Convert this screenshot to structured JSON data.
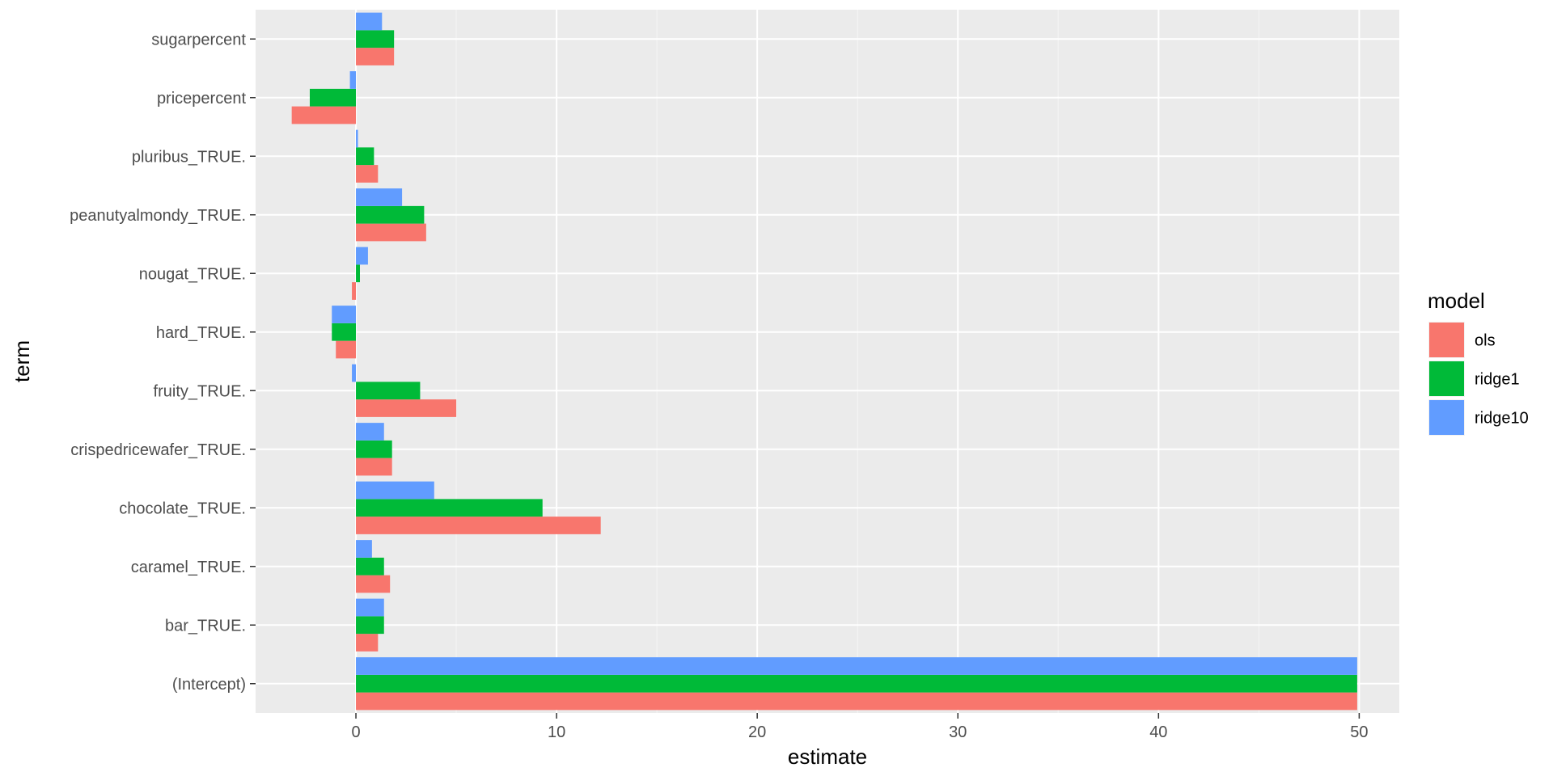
{
  "chart_data": {
    "type": "bar",
    "orientation": "horizontal",
    "xlabel": "estimate",
    "ylabel": "term",
    "xlim": [
      -5,
      52
    ],
    "x_ticks": [
      0,
      10,
      20,
      30,
      40,
      50
    ],
    "categories": [
      "(Intercept)",
      "bar_TRUE.",
      "caramel_TRUE.",
      "chocolate_TRUE.",
      "crispedricewafer_TRUE.",
      "fruity_TRUE.",
      "hard_TRUE.",
      "nougat_TRUE.",
      "peanutyalmondy_TRUE.",
      "pluribus_TRUE.",
      "pricepercent",
      "sugarpercent"
    ],
    "series": [
      {
        "name": "ols",
        "color": "#F8766D",
        "values": [
          49.9,
          1.1,
          1.7,
          12.2,
          1.8,
          5.0,
          -1.0,
          -0.2,
          3.5,
          1.1,
          -3.2,
          1.9
        ]
      },
      {
        "name": "ridge1",
        "color": "#00BA38",
        "values": [
          49.9,
          1.4,
          1.4,
          9.3,
          1.8,
          3.2,
          -1.2,
          0.2,
          3.4,
          0.9,
          -2.3,
          1.9
        ]
      },
      {
        "name": "ridge10",
        "color": "#619CFF",
        "values": [
          49.9,
          1.4,
          0.8,
          3.9,
          1.4,
          -0.2,
          -1.2,
          0.6,
          2.3,
          0.1,
          -0.3,
          1.3
        ]
      }
    ],
    "grid": true,
    "legend": {
      "title": "model",
      "position": "right"
    }
  }
}
